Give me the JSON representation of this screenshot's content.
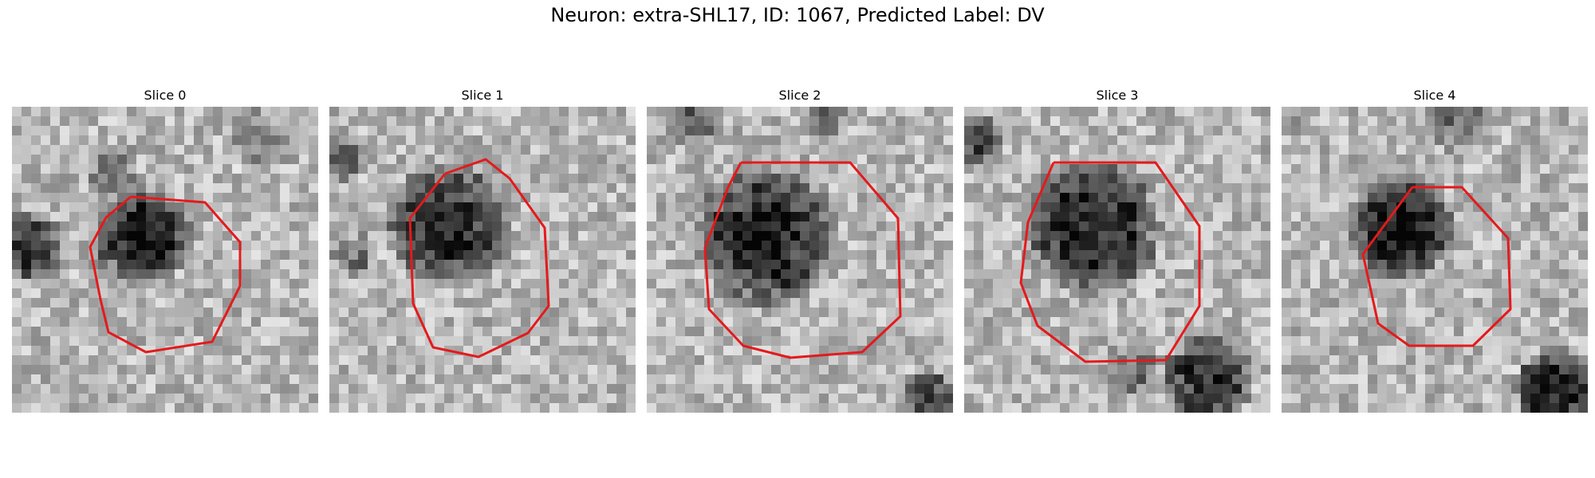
{
  "figure": {
    "title": "Neuron: extra-SHL17, ID: 1067, Predicted Label: DV"
  },
  "colors": {
    "contour": "#e41a1c",
    "background": "#ffffff"
  },
  "slices": [
    {
      "title": "Slice 0",
      "image": "grayscale microscopy patch with dark cell body outlined by red contour"
    },
    {
      "title": "Slice 1",
      "image": "grayscale microscopy patch with dark cell body outlined by red contour"
    },
    {
      "title": "Slice 2",
      "image": "grayscale microscopy patch with dark cell body outlined by red contour"
    },
    {
      "title": "Slice 3",
      "image": "grayscale microscopy patch with dark cell body outlined by red contour"
    },
    {
      "title": "Slice 4",
      "image": "grayscale microscopy patch with dark cell body outlined by red contour"
    }
  ]
}
